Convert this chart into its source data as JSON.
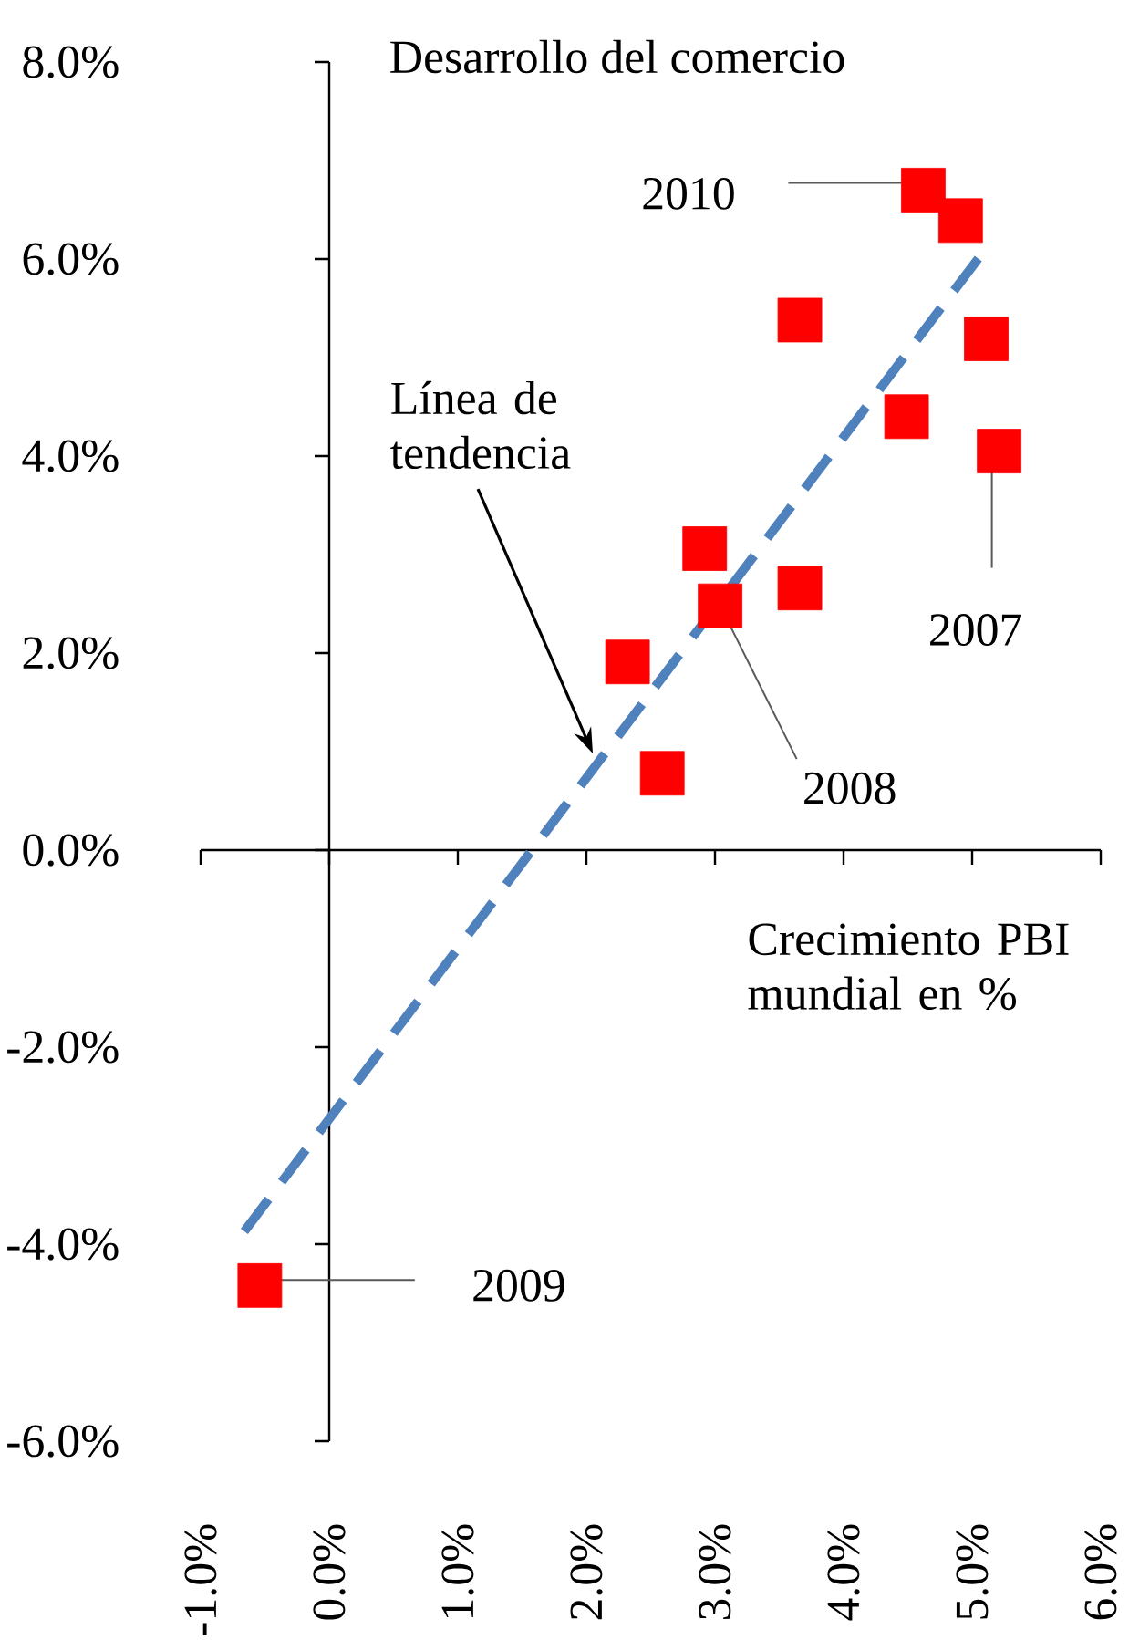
{
  "chart_data": {
    "type": "scatter",
    "xlabel": "Crecimiento PBI mundial en %",
    "ylabel": "Desarrollo del comercio",
    "xlim": [
      -1,
      6
    ],
    "ylim": [
      -6,
      8
    ],
    "xticks": [
      {
        "value": -1,
        "label": "-1.0%"
      },
      {
        "value": 0,
        "label": "0.0%"
      },
      {
        "value": 1,
        "label": "1.0%"
      },
      {
        "value": 2,
        "label": "2.0%"
      },
      {
        "value": 3,
        "label": "3.0%"
      },
      {
        "value": 4,
        "label": "4.0%"
      },
      {
        "value": 5,
        "label": "5.0%"
      },
      {
        "value": 6,
        "label": "6.0%"
      }
    ],
    "yticks": [
      {
        "value": -6,
        "label": "-6.0%"
      },
      {
        "value": -4,
        "label": "-4.0%"
      },
      {
        "value": -2,
        "label": "-2.0%"
      },
      {
        "value": 0,
        "label": "0.0%"
      },
      {
        "value": 2,
        "label": "2.0%"
      },
      {
        "value": 4,
        "label": "4.0%"
      },
      {
        "value": 6,
        "label": "6.0%"
      },
      {
        "value": 8,
        "label": "8.0%"
      }
    ],
    "marker": "square",
    "series": [
      {
        "color": "#ff0000",
        "x": [
          4.62,
          4.91,
          3.66,
          5.11,
          4.49,
          5.21,
          2.92,
          3.66,
          3.04,
          2.32,
          2.59,
          -0.54
        ],
        "values": [
          6.7,
          6.39,
          5.38,
          5.19,
          4.4,
          4.05,
          3.06,
          2.66,
          2.48,
          1.91,
          0.78,
          -4.42
        ]
      },
      {
        "type": "line",
        "color": "#4f81bd",
        "line_style": "dashed",
        "marker": "none",
        "x": [
          -0.66,
          5.12
        ],
        "values": [
          -3.87,
          6.13
        ]
      }
    ],
    "annotations": [
      {
        "text": "Línea de tendencia",
        "x": 2.05,
        "y": 0.98
      },
      {
        "text": "2010",
        "x": 4.62,
        "y": 6.7
      },
      {
        "text": "2007",
        "x": 5.21,
        "y": 4.05
      },
      {
        "text": "2008",
        "x": 3.04,
        "y": 2.48
      },
      {
        "text": "2009",
        "x": -0.54,
        "y": -4.42
      }
    ]
  }
}
